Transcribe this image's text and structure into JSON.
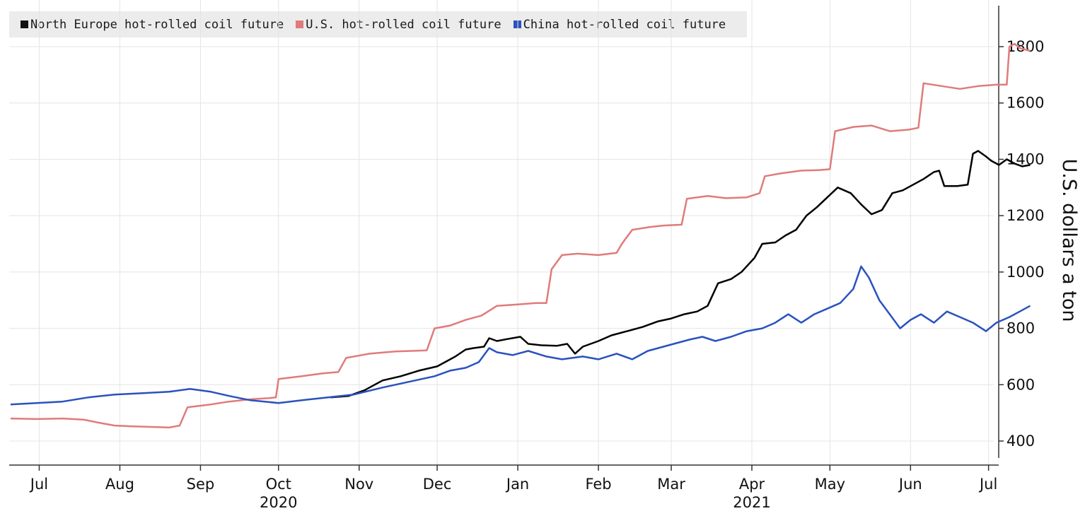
{
  "chart_data": {
    "type": "line",
    "title": "",
    "xlabel": "",
    "ylabel": "U.S. dollars a ton",
    "y_axis_side": "right",
    "ylim": [
      350,
      1920
    ],
    "yticks": [
      400,
      600,
      800,
      1000,
      1200,
      1400,
      1600,
      1800
    ],
    "xlim": [
      "2020-06-20",
      "2021-07-03"
    ],
    "x_ticks": [
      {
        "date": "2020-07-01",
        "label": "Jul"
      },
      {
        "date": "2020-08-01",
        "label": "Aug"
      },
      {
        "date": "2020-09-01",
        "label": "Sep"
      },
      {
        "date": "2020-10-01",
        "label": "Oct"
      },
      {
        "date": "2020-11-01",
        "label": "Nov"
      },
      {
        "date": "2020-12-01",
        "label": "Dec"
      },
      {
        "date": "2021-01-01",
        "label": "Jan"
      },
      {
        "date": "2021-02-01",
        "label": "Feb"
      },
      {
        "date": "2021-03-01",
        "label": "Mar"
      },
      {
        "date": "2021-04-01",
        "label": "Apr"
      },
      {
        "date": "2021-05-01",
        "label": "May"
      },
      {
        "date": "2021-06-01",
        "label": "Jun"
      },
      {
        "date": "2021-07-01",
        "label": "Jul"
      }
    ],
    "year_labels": [
      {
        "date": "2020-10-01",
        "label": "2020"
      },
      {
        "date": "2021-04-01",
        "label": "2021"
      }
    ],
    "grid": true,
    "legend_position": "top-left",
    "series": [
      {
        "name": "North Europe hot-rolled coil future",
        "color": "#000000",
        "points": [
          [
            "2020-10-21",
            555
          ],
          [
            "2020-10-28",
            560
          ],
          [
            "2020-11-03",
            580
          ],
          [
            "2020-11-10",
            615
          ],
          [
            "2020-11-17",
            630
          ],
          [
            "2020-11-24",
            650
          ],
          [
            "2020-12-01",
            665
          ],
          [
            "2020-12-08",
            700
          ],
          [
            "2020-12-12",
            725
          ],
          [
            "2020-12-15",
            730
          ],
          [
            "2020-12-19",
            735
          ],
          [
            "2020-12-21",
            765
          ],
          [
            "2020-12-24",
            755
          ],
          [
            "2020-12-28",
            762
          ],
          [
            "2021-01-02",
            770
          ],
          [
            "2021-01-05",
            745
          ],
          [
            "2021-01-10",
            740
          ],
          [
            "2021-01-16",
            738
          ],
          [
            "2021-01-20",
            745
          ],
          [
            "2021-01-23",
            710
          ],
          [
            "2021-01-26",
            735
          ],
          [
            "2021-02-01",
            755
          ],
          [
            "2021-02-06",
            775
          ],
          [
            "2021-02-12",
            790
          ],
          [
            "2021-02-18",
            805
          ],
          [
            "2021-02-24",
            825
          ],
          [
            "2021-03-01",
            835
          ],
          [
            "2021-03-06",
            850
          ],
          [
            "2021-03-11",
            860
          ],
          [
            "2021-03-15",
            880
          ],
          [
            "2021-03-19",
            960
          ],
          [
            "2021-03-24",
            975
          ],
          [
            "2021-03-28",
            1000
          ],
          [
            "2021-04-02",
            1050
          ],
          [
            "2021-04-05",
            1100
          ],
          [
            "2021-04-10",
            1105
          ],
          [
            "2021-04-14",
            1130
          ],
          [
            "2021-04-18",
            1150
          ],
          [
            "2021-04-22",
            1200
          ],
          [
            "2021-04-26",
            1230
          ],
          [
            "2021-04-30",
            1265
          ],
          [
            "2021-05-04",
            1300
          ],
          [
            "2021-05-09",
            1280
          ],
          [
            "2021-05-13",
            1240
          ],
          [
            "2021-05-17",
            1205
          ],
          [
            "2021-05-21",
            1220
          ],
          [
            "2021-05-25",
            1280
          ],
          [
            "2021-05-29",
            1290
          ],
          [
            "2021-06-02",
            1310
          ],
          [
            "2021-06-06",
            1330
          ],
          [
            "2021-06-10",
            1355
          ],
          [
            "2021-06-12",
            1360
          ],
          [
            "2021-06-14",
            1305
          ],
          [
            "2021-06-19",
            1305
          ],
          [
            "2021-06-23",
            1310
          ],
          [
            "2021-06-25",
            1420
          ],
          [
            "2021-06-27",
            1430
          ],
          [
            "2021-06-30",
            1410
          ],
          [
            "2021-07-02",
            1395
          ],
          [
            "2021-07-05",
            1380
          ],
          [
            "2021-07-08",
            1400
          ],
          [
            "2021-07-11",
            1385
          ],
          [
            "2021-07-14",
            1375
          ],
          [
            "2021-07-17",
            1380
          ]
        ]
      },
      {
        "name": "U.S. hot-rolled coil future",
        "color": "#e07b7b",
        "points": [
          [
            "2020-06-20",
            480
          ],
          [
            "2020-06-30",
            478
          ],
          [
            "2020-07-10",
            480
          ],
          [
            "2020-07-18",
            476
          ],
          [
            "2020-07-24",
            465
          ],
          [
            "2020-07-30",
            455
          ],
          [
            "2020-08-06",
            452
          ],
          [
            "2020-08-14",
            450
          ],
          [
            "2020-08-20",
            448
          ],
          [
            "2020-08-24",
            455
          ],
          [
            "2020-08-27",
            520
          ],
          [
            "2020-09-05",
            530
          ],
          [
            "2020-09-12",
            540
          ],
          [
            "2020-09-20",
            548
          ],
          [
            "2020-09-27",
            552
          ],
          [
            "2020-09-30",
            555
          ],
          [
            "2020-10-01",
            620
          ],
          [
            "2020-10-10",
            630
          ],
          [
            "2020-10-18",
            640
          ],
          [
            "2020-10-24",
            645
          ],
          [
            "2020-10-27",
            695
          ],
          [
            "2020-11-05",
            710
          ],
          [
            "2020-11-15",
            718
          ],
          [
            "2020-11-27",
            722
          ],
          [
            "2020-11-30",
            800
          ],
          [
            "2020-12-06",
            810
          ],
          [
            "2020-12-12",
            830
          ],
          [
            "2020-12-18",
            845
          ],
          [
            "2020-12-24",
            880
          ],
          [
            "2021-01-01",
            885
          ],
          [
            "2021-01-08",
            890
          ],
          [
            "2021-01-12",
            890
          ],
          [
            "2021-01-14",
            1010
          ],
          [
            "2021-01-18",
            1060
          ],
          [
            "2021-01-24",
            1065
          ],
          [
            "2021-02-01",
            1060
          ],
          [
            "2021-02-08",
            1068
          ],
          [
            "2021-02-10",
            1100
          ],
          [
            "2021-02-14",
            1150
          ],
          [
            "2021-02-21",
            1160
          ],
          [
            "2021-02-26",
            1165
          ],
          [
            "2021-03-05",
            1168
          ],
          [
            "2021-03-07",
            1260
          ],
          [
            "2021-03-15",
            1270
          ],
          [
            "2021-03-22",
            1262
          ],
          [
            "2021-03-30",
            1265
          ],
          [
            "2021-04-04",
            1280
          ],
          [
            "2021-04-06",
            1340
          ],
          [
            "2021-04-12",
            1350
          ],
          [
            "2021-04-20",
            1360
          ],
          [
            "2021-04-27",
            1362
          ],
          [
            "2021-05-01",
            1365
          ],
          [
            "2021-05-03",
            1500
          ],
          [
            "2021-05-10",
            1515
          ],
          [
            "2021-05-17",
            1520
          ],
          [
            "2021-05-24",
            1500
          ],
          [
            "2021-05-31",
            1505
          ],
          [
            "2021-06-04",
            1512
          ],
          [
            "2021-06-06",
            1670
          ],
          [
            "2021-06-13",
            1660
          ],
          [
            "2021-06-20",
            1650
          ],
          [
            "2021-06-27",
            1660
          ],
          [
            "2021-07-04",
            1665
          ],
          [
            "2021-07-08",
            1665
          ],
          [
            "2021-07-09",
            1800
          ],
          [
            "2021-07-11",
            1810
          ],
          [
            "2021-07-13",
            1795
          ],
          [
            "2021-07-15",
            1790
          ],
          [
            "2021-07-17",
            1785
          ]
        ]
      },
      {
        "name": "China hot-rolled coil future",
        "color": "#2a52be",
        "points": [
          [
            "2020-06-20",
            530
          ],
          [
            "2020-06-30",
            535
          ],
          [
            "2020-07-10",
            540
          ],
          [
            "2020-07-20",
            555
          ],
          [
            "2020-07-30",
            565
          ],
          [
            "2020-08-10",
            570
          ],
          [
            "2020-08-20",
            575
          ],
          [
            "2020-08-28",
            585
          ],
          [
            "2020-09-05",
            575
          ],
          [
            "2020-09-12",
            560
          ],
          [
            "2020-09-20",
            545
          ],
          [
            "2020-10-01",
            535
          ],
          [
            "2020-10-10",
            545
          ],
          [
            "2020-10-20",
            555
          ],
          [
            "2020-10-30",
            565
          ],
          [
            "2020-11-10",
            590
          ],
          [
            "2020-11-20",
            610
          ],
          [
            "2020-11-30",
            630
          ],
          [
            "2020-12-06",
            650
          ],
          [
            "2020-12-12",
            660
          ],
          [
            "2020-12-17",
            680
          ],
          [
            "2020-12-21",
            730
          ],
          [
            "2020-12-24",
            715
          ],
          [
            "2020-12-30",
            705
          ],
          [
            "2021-01-05",
            720
          ],
          [
            "2021-01-12",
            700
          ],
          [
            "2021-01-18",
            690
          ],
          [
            "2021-01-26",
            700
          ],
          [
            "2021-02-01",
            690
          ],
          [
            "2021-02-08",
            710
          ],
          [
            "2021-02-14",
            690
          ],
          [
            "2021-02-20",
            720
          ],
          [
            "2021-02-28",
            740
          ],
          [
            "2021-03-08",
            760
          ],
          [
            "2021-03-13",
            770
          ],
          [
            "2021-03-18",
            755
          ],
          [
            "2021-03-24",
            770
          ],
          [
            "2021-03-30",
            790
          ],
          [
            "2021-04-05",
            800
          ],
          [
            "2021-04-10",
            820
          ],
          [
            "2021-04-15",
            850
          ],
          [
            "2021-04-20",
            820
          ],
          [
            "2021-04-25",
            850
          ],
          [
            "2021-04-30",
            870
          ],
          [
            "2021-05-05",
            890
          ],
          [
            "2021-05-10",
            940
          ],
          [
            "2021-05-13",
            1020
          ],
          [
            "2021-05-16",
            980
          ],
          [
            "2021-05-20",
            900
          ],
          [
            "2021-05-24",
            850
          ],
          [
            "2021-05-28",
            800
          ],
          [
            "2021-06-01",
            830
          ],
          [
            "2021-06-05",
            850
          ],
          [
            "2021-06-10",
            820
          ],
          [
            "2021-06-15",
            860
          ],
          [
            "2021-06-20",
            840
          ],
          [
            "2021-06-25",
            820
          ],
          [
            "2021-06-30",
            790
          ],
          [
            "2021-07-04",
            820
          ],
          [
            "2021-07-09",
            840
          ],
          [
            "2021-07-13",
            860
          ],
          [
            "2021-07-17",
            880
          ]
        ]
      }
    ]
  }
}
